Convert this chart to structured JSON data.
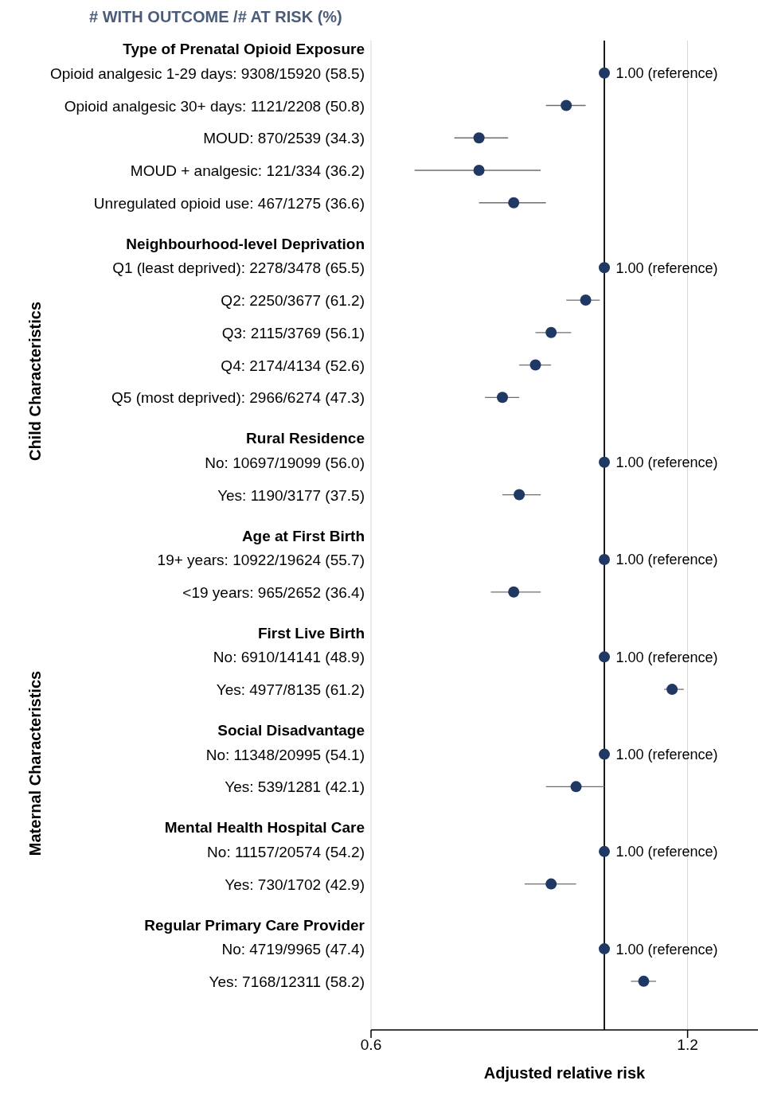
{
  "chart_data": {
    "type": "scatter",
    "title": "# WITH OUTCOME /# AT RISK (%)",
    "xlabel": "Adjusted relative risk",
    "categories": [
      "Type of Prenatal Opioid Exposure",
      "Opioid analgesic 1-29 days: 9308/15920 (58.5)",
      "Opioid analgesic 30+ days: 1121/2208 (50.8)",
      "MOUD: 870/2539 (34.3)",
      "MOUD + analgesic: 121/334 (36.2)",
      "Unregulated opioid use: 467/1275 (36.6)",
      "Neighbourhood-level Deprivation",
      "Q1 (least deprived): 2278/3478 (65.5)",
      "Q2: 2250/3677 (61.2)",
      "Q3: 2115/3769 (56.1)",
      "Q4: 2174/4134 (52.6)",
      "Q5 (most deprived): 2966/6274 (47.3)",
      "Rural Residence",
      "No: 10697/19099 (56.0)",
      "Yes: 1190/3177 (37.5)",
      "Age at First Birth",
      "19+ years: 10922/19624 (55.7)",
      "<19 years: 965/2652 (36.4)",
      "First Live Birth",
      "No: 6910/14141 (48.9)",
      "Yes: 4977/8135 (61.2)",
      "Social Disadvantage",
      "No: 11348/20995 (54.1)",
      "Yes: 539/1281 (42.1)",
      "Mental Health Hospital Care",
      "No: 11157/20574 (54.2)",
      "Yes: 730/1702 (42.9)",
      "Regular Primary Care Provider",
      "No: 4719/9965 (47.4)",
      "Yes: 7168/12311 (58.2)"
    ],
    "series": [
      {
        "color": "#1f3864",
        "values": [
          null,
          1.0,
          0.92,
          0.76,
          0.76,
          0.82,
          null,
          1.0,
          0.96,
          0.89,
          0.86,
          0.8,
          null,
          1.0,
          0.83,
          null,
          1.0,
          0.82,
          null,
          1.0,
          1.16,
          null,
          1.0,
          0.94,
          null,
          1.0,
          0.89,
          null,
          1.0,
          1.09
        ],
        "errors": [
          null,
          null,
          [
            0.88,
            0.96
          ],
          [
            0.72,
            0.81
          ],
          [
            0.66,
            0.87
          ],
          [
            0.76,
            0.88
          ],
          null,
          null,
          [
            0.92,
            0.99
          ],
          [
            0.86,
            0.93
          ],
          [
            0.83,
            0.89
          ],
          [
            0.77,
            0.83
          ],
          null,
          null,
          [
            0.8,
            0.87
          ],
          null,
          null,
          [
            0.78,
            0.87
          ],
          null,
          null,
          [
            1.14,
            1.19
          ],
          null,
          null,
          [
            0.88,
            1.0
          ],
          null,
          null,
          [
            0.84,
            0.94
          ],
          null,
          null,
          [
            1.06,
            1.12
          ]
        ],
        "value_labels": [
          null,
          "1.00 (reference)",
          null,
          null,
          null,
          null,
          null,
          "1.00 (reference)",
          null,
          null,
          null,
          null,
          null,
          "1.00 (reference)",
          null,
          null,
          "1.00 (reference)",
          null,
          null,
          "1.00 (reference)",
          null,
          null,
          "1.00 (reference)",
          null,
          null,
          "1.00 (reference)",
          null,
          null,
          "1.00 (reference)",
          null
        ]
      }
    ],
    "orientation": "horizontal",
    "log": "x",
    "xlim": [
      0.6,
      1.4
    ],
    "xticks": [
      0.6,
      1.2
    ],
    "grid": true,
    "marker": "circle",
    "legend": false,
    "ref_lines": [
      {
        "axis": "x",
        "value": 1,
        "color": "#000000"
      }
    ],
    "annotations": [
      "Child Characteristics",
      "Maternal Characteristics"
    ]
  }
}
